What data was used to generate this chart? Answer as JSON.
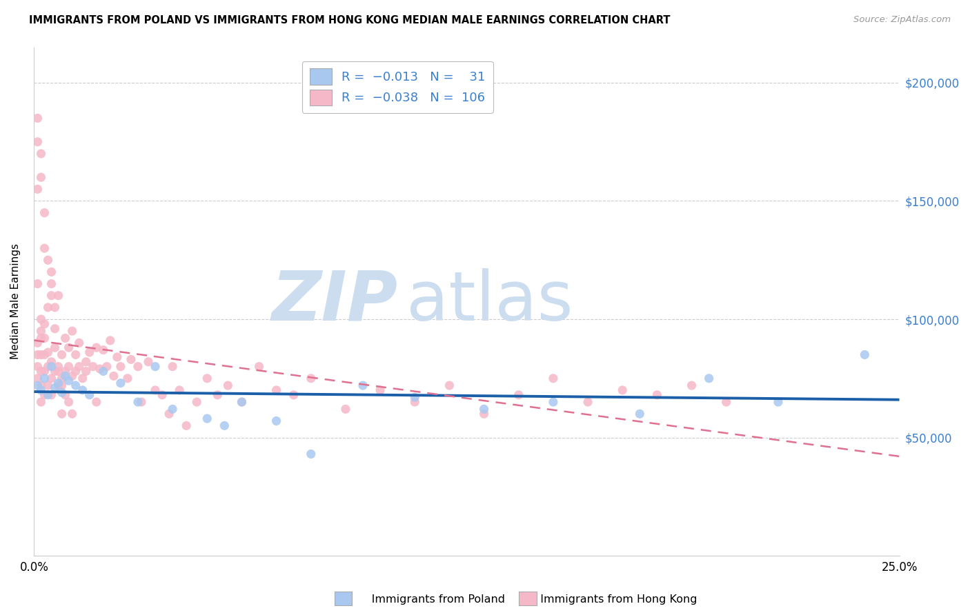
{
  "title": "IMMIGRANTS FROM POLAND VS IMMIGRANTS FROM HONG KONG MEDIAN MALE EARNINGS CORRELATION CHART",
  "source": "Source: ZipAtlas.com",
  "ylabel": "Median Male Earnings",
  "color_poland": "#a8c8f0",
  "color_hk": "#f5b8c8",
  "color_trendline_poland": "#1a5fa8",
  "color_trendline_hk": "#e07090",
  "watermark_zip": "#c8ddf0",
  "watermark_atlas": "#c8ddf0",
  "xlim": [
    0.0,
    0.25
  ],
  "ylim": [
    0,
    215000
  ],
  "ytick_positions": [
    0,
    50000,
    100000,
    150000,
    200000
  ],
  "ytick_labels": [
    "",
    "$50,000",
    "$100,000",
    "$150,000",
    "$200,000"
  ],
  "xtick_positions": [
    0.0,
    0.05,
    0.1,
    0.15,
    0.2,
    0.25
  ],
  "xtick_labels": [
    "0.0%",
    "",
    "",
    "",
    "",
    "25.0%"
  ],
  "legend_label1": "R =  -0.013   N =   31",
  "legend_label2": "R =  -0.038   N = 106",
  "bottom_label1": "Immigrants from Poland",
  "bottom_label2": "Immigrants from Hong Kong",
  "poland_x": [
    0.001,
    0.002,
    0.003,
    0.004,
    0.005,
    0.006,
    0.007,
    0.008,
    0.009,
    0.01,
    0.012,
    0.014,
    0.016,
    0.02,
    0.025,
    0.03,
    0.035,
    0.04,
    0.05,
    0.055,
    0.06,
    0.07,
    0.08,
    0.095,
    0.11,
    0.13,
    0.15,
    0.175,
    0.195,
    0.215,
    0.24
  ],
  "poland_y": [
    72000,
    70000,
    75000,
    68000,
    80000,
    71000,
    73000,
    69000,
    76000,
    74000,
    72000,
    70000,
    68000,
    78000,
    73000,
    65000,
    80000,
    62000,
    58000,
    55000,
    65000,
    57000,
    43000,
    72000,
    67000,
    62000,
    65000,
    60000,
    75000,
    65000,
    85000
  ],
  "hk_x": [
    0.001,
    0.001,
    0.001,
    0.001,
    0.001,
    0.002,
    0.002,
    0.002,
    0.002,
    0.002,
    0.002,
    0.002,
    0.003,
    0.003,
    0.003,
    0.003,
    0.003,
    0.004,
    0.004,
    0.004,
    0.004,
    0.005,
    0.005,
    0.005,
    0.005,
    0.006,
    0.006,
    0.006,
    0.007,
    0.007,
    0.007,
    0.008,
    0.008,
    0.008,
    0.009,
    0.009,
    0.01,
    0.01,
    0.011,
    0.011,
    0.012,
    0.012,
    0.013,
    0.013,
    0.014,
    0.015,
    0.015,
    0.016,
    0.017,
    0.018,
    0.018,
    0.019,
    0.02,
    0.021,
    0.022,
    0.023,
    0.024,
    0.025,
    0.027,
    0.028,
    0.03,
    0.031,
    0.033,
    0.035,
    0.037,
    0.039,
    0.04,
    0.042,
    0.044,
    0.047,
    0.05,
    0.053,
    0.056,
    0.06,
    0.065,
    0.07,
    0.075,
    0.08,
    0.09,
    0.1,
    0.11,
    0.12,
    0.13,
    0.14,
    0.15,
    0.16,
    0.17,
    0.18,
    0.19,
    0.2,
    0.002,
    0.002,
    0.003,
    0.003,
    0.004,
    0.005,
    0.005,
    0.006,
    0.001,
    0.001,
    0.001,
    0.007,
    0.008,
    0.009,
    0.01,
    0.011
  ],
  "hk_y": [
    75000,
    85000,
    90000,
    80000,
    115000,
    95000,
    100000,
    78000,
    85000,
    92000,
    72000,
    65000,
    78000,
    85000,
    92000,
    98000,
    68000,
    80000,
    86000,
    105000,
    72000,
    75000,
    82000,
    115000,
    68000,
    78000,
    88000,
    96000,
    80000,
    110000,
    72000,
    75000,
    85000,
    60000,
    78000,
    92000,
    80000,
    88000,
    76000,
    95000,
    78000,
    85000,
    80000,
    90000,
    75000,
    82000,
    78000,
    86000,
    80000,
    88000,
    65000,
    79000,
    87000,
    80000,
    91000,
    76000,
    84000,
    80000,
    75000,
    83000,
    80000,
    65000,
    82000,
    70000,
    68000,
    60000,
    80000,
    70000,
    55000,
    65000,
    75000,
    68000,
    72000,
    65000,
    80000,
    70000,
    68000,
    75000,
    62000,
    70000,
    65000,
    72000,
    60000,
    68000,
    75000,
    65000,
    70000,
    68000,
    72000,
    65000,
    170000,
    160000,
    145000,
    130000,
    125000,
    120000,
    110000,
    105000,
    185000,
    175000,
    155000,
    78000,
    72000,
    68000,
    65000,
    60000
  ]
}
